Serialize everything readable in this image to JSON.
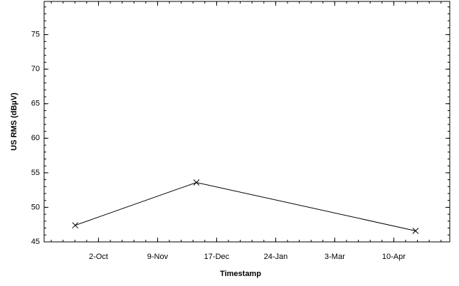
{
  "chart_data": {
    "type": "line",
    "x_label": "Timestamp",
    "y_label": "US RMS (dBµV)",
    "x": [
      "17-Sep",
      "4-Dec",
      "24-Apr"
    ],
    "series": [
      {
        "color": "#000000",
        "marker": "x",
        "values": [
          47.4,
          53.6,
          46.6
        ]
      }
    ],
    "xlim": [
      "28-Aug",
      "16-May"
    ],
    "xticks": [
      "2-Oct",
      "9-Nov",
      "17-Dec",
      "24-Jan",
      "3-Mar",
      "10-Apr"
    ],
    "ylim": [
      45,
      79.8
    ],
    "yticks": [
      45,
      50,
      55,
      60,
      65,
      70,
      75
    ]
  }
}
